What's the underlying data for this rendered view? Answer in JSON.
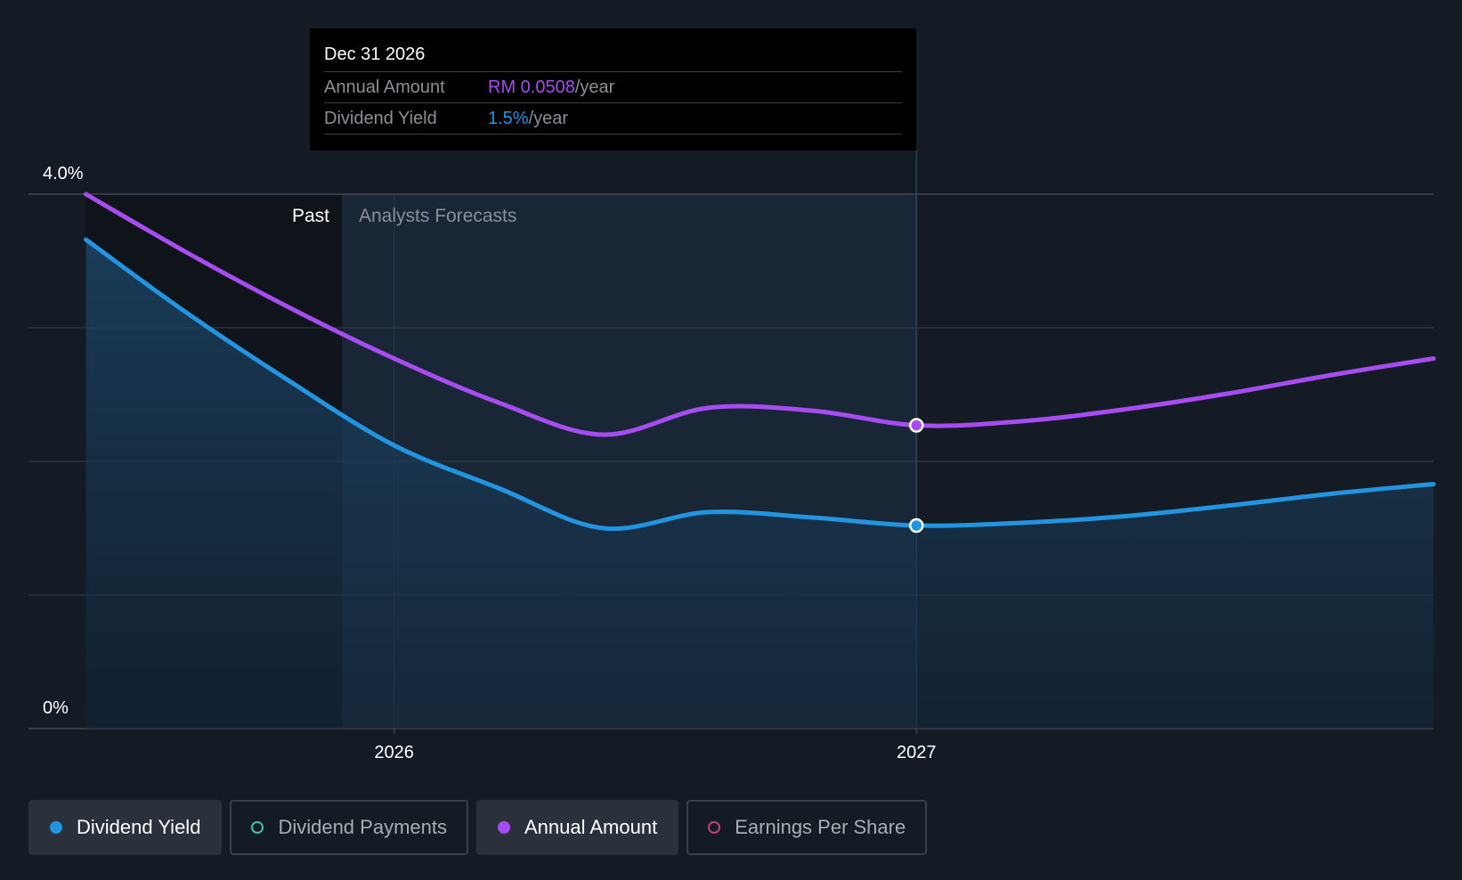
{
  "tooltip": {
    "date": "Dec 31 2026",
    "annual_label": "Annual Amount",
    "annual_value": "RM 0.0508",
    "annual_unit": "/year",
    "yield_label": "Dividend Yield",
    "yield_value": "1.5%",
    "yield_unit": "/year"
  },
  "legend": [
    {
      "label": "Dividend Yield",
      "active": true
    },
    {
      "label": "Dividend Payments",
      "active": false
    },
    {
      "label": "Annual Amount",
      "active": true
    },
    {
      "label": "Earnings Per Share",
      "active": false
    }
  ],
  "colors": {
    "background": "#151b24",
    "yield": "#2394df",
    "annual": "#a64cf0",
    "payments": "#3fc1b0",
    "eps": "#c2417a",
    "grid": "#323944"
  },
  "chart_data": {
    "type": "line",
    "title": "",
    "xlabel": "",
    "ylabel": "",
    "y_tick_labels": [
      "0%",
      "4.0%"
    ],
    "x_tick_labels": [
      {
        "label": "2026",
        "x": 2026.0
      },
      {
        "label": "2027",
        "x": 2027.0
      }
    ],
    "xlim": [
      2025.3,
      2027.99
    ],
    "ylim": [
      0,
      4.0
    ],
    "region_labels": {
      "past": "Past",
      "forecast": "Analysts Forecasts"
    },
    "past_end": 2025.9,
    "highlight_x": 2027.0,
    "series": [
      {
        "name": "Annual Amount",
        "x": [
          2025.41,
          2025.6,
          2025.8,
          2026.0,
          2026.2,
          2026.4,
          2026.6,
          2026.8,
          2027.0,
          2027.2,
          2027.4,
          2027.6,
          2027.8,
          2027.99
        ],
        "values": [
          4.0,
          3.57,
          3.15,
          2.77,
          2.44,
          2.2,
          2.4,
          2.38,
          2.27,
          2.3,
          2.39,
          2.51,
          2.65,
          2.77
        ]
      },
      {
        "name": "Dividend Yield",
        "x": [
          2025.41,
          2025.6,
          2025.8,
          2026.0,
          2026.2,
          2026.4,
          2026.6,
          2026.8,
          2027.0,
          2027.2,
          2027.4,
          2027.6,
          2027.8,
          2027.99
        ],
        "values": [
          3.66,
          3.12,
          2.6,
          2.12,
          1.8,
          1.5,
          1.62,
          1.58,
          1.52,
          1.54,
          1.59,
          1.67,
          1.76,
          1.83
        ]
      }
    ]
  }
}
